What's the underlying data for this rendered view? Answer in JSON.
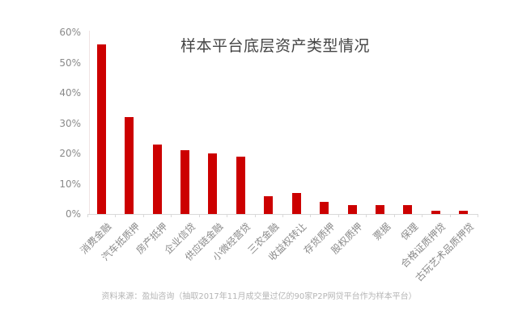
{
  "chart_data": {
    "type": "bar",
    "title": "样本平台底层资产类型情况",
    "xlabel": "",
    "ylabel": "",
    "ylim": [
      0,
      60
    ],
    "yticks": [
      "0%",
      "10%",
      "20%",
      "30%",
      "40%",
      "50%",
      "60%"
    ],
    "grid": false,
    "legend": null,
    "categories": [
      "消费金融",
      "汽车抵质押",
      "房产抵押",
      "企业信贷",
      "供应链金融",
      "小微经营贷",
      "三农金融",
      "收益权转让",
      "存货质押",
      "股权质押",
      "票据",
      "保理",
      "合格证质押贷",
      "古玩艺术品质押贷"
    ],
    "values": [
      56,
      32,
      23,
      21,
      20,
      19,
      6,
      7,
      4,
      3,
      3,
      3,
      1,
      1
    ],
    "unit": "%",
    "bar_color": "#cc0000",
    "source_note": "资料来源：盈灿咨询（抽取2017年11月成交量过亿的90家P2P网贷平台作为样本平台）"
  }
}
